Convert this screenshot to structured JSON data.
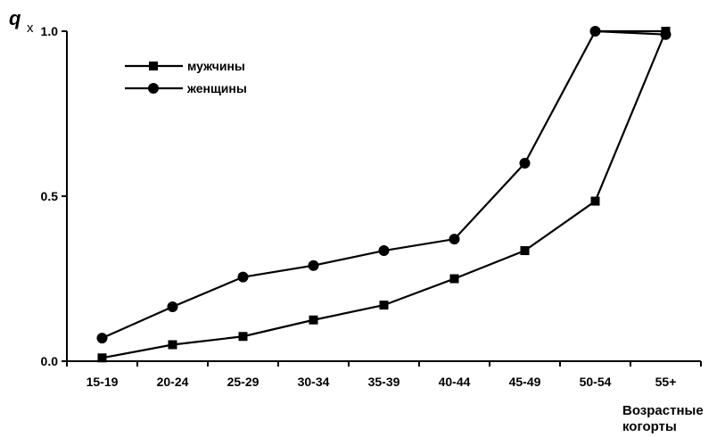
{
  "chart_data": {
    "type": "line",
    "title": "",
    "ylabel": {
      "main": "q",
      "sub": "x"
    },
    "xlabel": {
      "line1": "Возрастные",
      "line2": "когорты"
    },
    "categories": [
      "15-19",
      "20-24",
      "25-29",
      "30-34",
      "35-39",
      "40-44",
      "45-49",
      "50-54",
      "55+"
    ],
    "ylim": [
      0,
      1.0
    ],
    "yticks": [
      "0.0",
      "0.5",
      "1.0"
    ],
    "grid": false,
    "legend": "top-left",
    "series": [
      {
        "name": "мужчины",
        "marker": "square",
        "color": "#000000",
        "values": [
          0.01,
          0.05,
          0.075,
          0.125,
          0.17,
          0.25,
          0.335,
          0.485,
          1.0
        ]
      },
      {
        "name": "женщины",
        "marker": "circle",
        "color": "#000000",
        "values": [
          0.07,
          0.165,
          0.255,
          0.29,
          0.335,
          0.37,
          0.6,
          1.0,
          0.99
        ]
      }
    ],
    "extra_segments": [
      {
        "series": "женщины",
        "from_category": "50-54",
        "to_category": "55+",
        "y": 1.0
      }
    ]
  }
}
